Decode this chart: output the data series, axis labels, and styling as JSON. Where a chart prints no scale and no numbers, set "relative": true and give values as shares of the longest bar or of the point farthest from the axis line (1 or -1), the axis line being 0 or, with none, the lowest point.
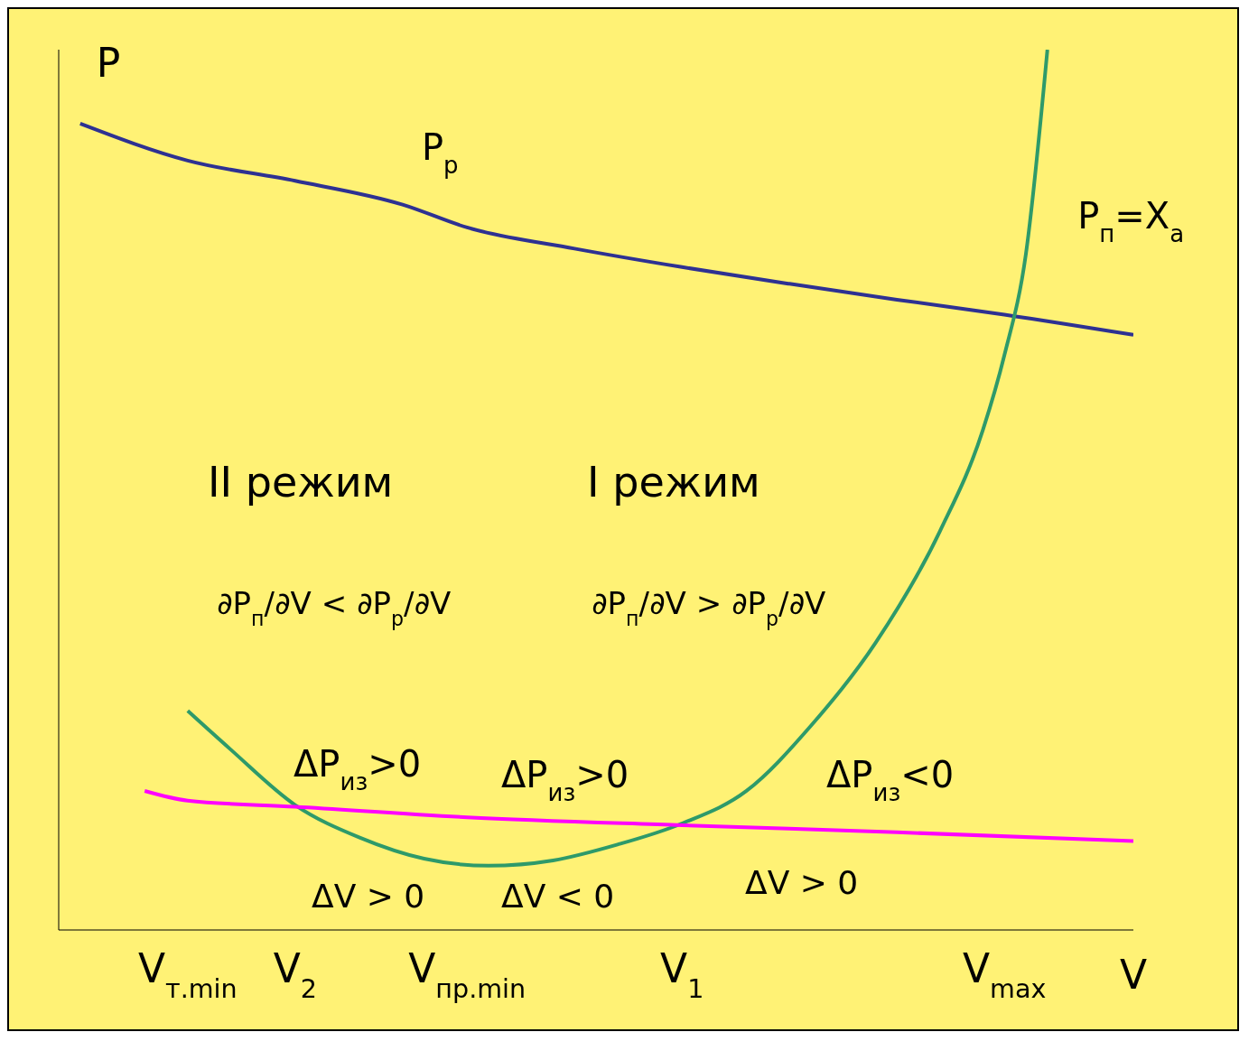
{
  "chart_data": {
    "type": "line",
    "relative": true,
    "xlabel": "V",
    "ylabel": "P",
    "categories": [
      null,
      null,
      null,
      null,
      null,
      null,
      "V$_{т.min}$",
      null,
      null,
      null,
      null,
      "V$_{2}$",
      null,
      null,
      null,
      null,
      null,
      null,
      null,
      "V$_{пр.min}$",
      null,
      null,
      null,
      null,
      null,
      null,
      null,
      null,
      null,
      "V$_{1}$",
      null,
      null,
      null,
      null,
      null,
      null,
      null,
      null,
      null,
      null,
      null,
      null,
      null,
      null,
      "V$_{max}$",
      null,
      null,
      null,
      null,
      null,
      null
    ],
    "series": [
      {
        "name": "P$_{р}$",
        "color": "#2e3192",
        "values": [
          null,
          0.916,
          null,
          null,
          null,
          null,
          0.874,
          null,
          null,
          null,
          null,
          0.851,
          null,
          null,
          null,
          null,
          0.824,
          null,
          null,
          0.798,
          null,
          null,
          null,
          null,
          0.774,
          null,
          null,
          null,
          null,
          0.753,
          null,
          null,
          null,
          null,
          0.734,
          null,
          null,
          null,
          null,
          0.716,
          null,
          null,
          null,
          null,
          0.699,
          null,
          null,
          null,
          null,
          null,
          0.676
        ]
      },
      {
        "name": "P$_{п}$=X$_{а}$",
        "color": "#2e9a6a",
        "values": [
          null,
          null,
          null,
          null,
          null,
          null,
          0.249,
          null,
          0.205,
          null,
          null,
          0.142,
          null,
          null,
          0.105,
          null,
          null,
          0.081,
          null,
          null,
          0.073,
          null,
          null,
          0.079,
          null,
          null,
          0.097,
          null,
          null,
          0.121,
          null,
          null,
          0.158,
          null,
          null,
          0.232,
          null,
          null,
          0.326,
          null,
          null,
          0.453,
          null,
          0.568,
          0.653,
          0.768,
          1.0,
          null,
          null,
          null,
          null
        ]
      },
      {
        "color": "#ff00ff",
        "values": [
          null,
          null,
          null,
          null,
          0.158,
          null,
          0.147,
          null,
          null,
          null,
          null,
          0.14,
          null,
          null,
          null,
          null,
          null,
          null,
          null,
          0.128,
          null,
          null,
          null,
          null,
          null,
          null,
          null,
          null,
          null,
          0.119,
          null,
          null,
          null,
          null,
          null,
          null,
          null,
          null,
          null,
          0.111,
          null,
          null,
          null,
          null,
          null,
          null,
          null,
          null,
          null,
          null,
          0.101
        ]
      }
    ],
    "annotations": [
      "II режим",
      "I режим",
      "∂P$_{п}$/∂V < ∂P$_{р}$/∂V",
      "∂P$_{п}$/∂V > ∂P$_{р}$/∂V",
      "ΔP$_{из}$>0",
      "ΔP$_{из}$>0",
      "ΔP$_{из}$<0",
      "ΔV > 0",
      "ΔV < 0",
      "ΔV > 0"
    ],
    "grid": false,
    "legend": false,
    "marker": "none",
    "line_style": "solid"
  }
}
